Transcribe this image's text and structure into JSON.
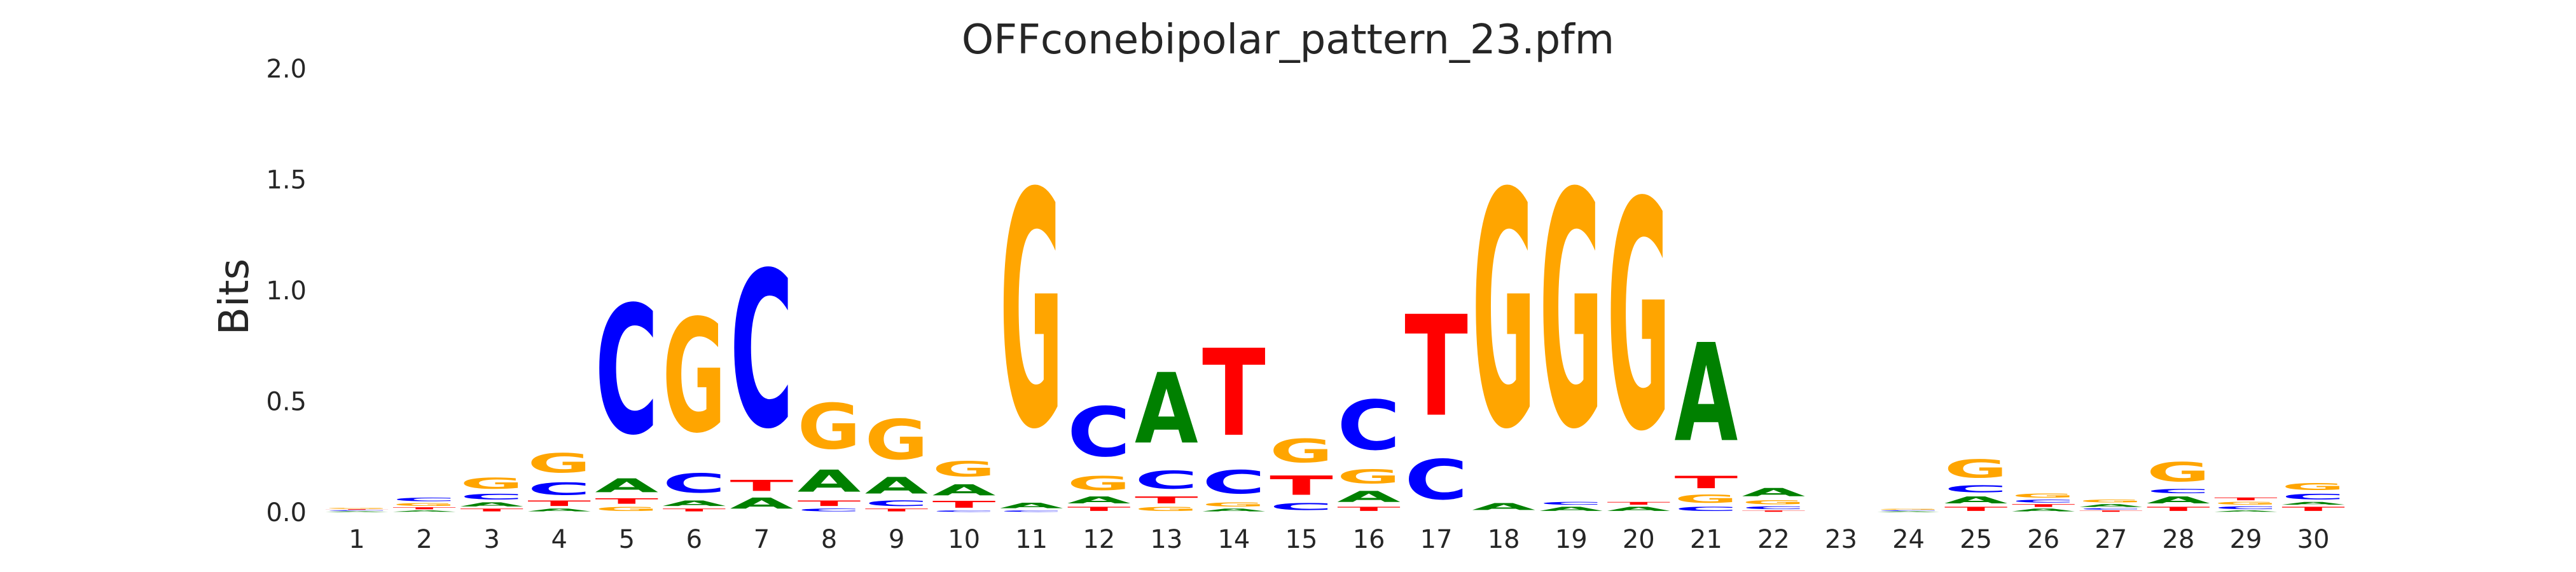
{
  "chart_data": {
    "type": "sequence-logo",
    "title": "OFFconebipolar_pattern_23.pfm",
    "ylabel": "Bits",
    "xlabel": "",
    "ylim": [
      0,
      2.0
    ],
    "y_ticks": [
      "0.0",
      "0.5",
      "1.0",
      "1.5",
      "2.0"
    ],
    "grid": false,
    "base_colors": {
      "A": "#008000",
      "C": "#0000ff",
      "G": "#ffa500",
      "T": "#ff0000"
    },
    "positions": [
      {
        "label": "1",
        "stack": [
          [
            "A",
            0.005
          ],
          [
            "C",
            0.005
          ],
          [
            "T",
            0.005
          ],
          [
            "G",
            0.005
          ]
        ]
      },
      {
        "label": "2",
        "stack": [
          [
            "A",
            0.01
          ],
          [
            "T",
            0.015
          ],
          [
            "G",
            0.02
          ],
          [
            "C",
            0.025
          ]
        ]
      },
      {
        "label": "3",
        "stack": [
          [
            "T",
            0.02
          ],
          [
            "A",
            0.03
          ],
          [
            "C",
            0.04
          ],
          [
            "G",
            0.08
          ]
        ]
      },
      {
        "label": "4",
        "stack": [
          [
            "A",
            0.02
          ],
          [
            "T",
            0.04
          ],
          [
            "C",
            0.09
          ],
          [
            "G",
            0.14
          ]
        ]
      },
      {
        "label": "5",
        "stack": [
          [
            "G",
            0.03
          ],
          [
            "T",
            0.04
          ],
          [
            "A",
            0.1
          ],
          [
            "C",
            0.93
          ]
        ]
      },
      {
        "label": "6",
        "stack": [
          [
            "T",
            0.02
          ],
          [
            "A",
            0.04
          ],
          [
            "C",
            0.14
          ],
          [
            "G",
            0.82
          ]
        ]
      },
      {
        "label": "7",
        "stack": [
          [
            "A",
            0.08
          ],
          [
            "T",
            0.08
          ],
          [
            "C",
            1.13
          ]
        ]
      },
      {
        "label": "8",
        "stack": [
          [
            "C",
            0.02
          ],
          [
            "T",
            0.04
          ],
          [
            "A",
            0.16
          ],
          [
            "G",
            0.33
          ]
        ]
      },
      {
        "label": "9",
        "stack": [
          [
            "T",
            0.02
          ],
          [
            "C",
            0.04
          ],
          [
            "A",
            0.12
          ],
          [
            "G",
            0.29
          ]
        ]
      },
      {
        "label": "10",
        "stack": [
          [
            "C",
            0.01
          ],
          [
            "T",
            0.05
          ],
          [
            "A",
            0.08
          ],
          [
            "G",
            0.11
          ]
        ]
      },
      {
        "label": "11",
        "stack": [
          [
            "C",
            0.01
          ],
          [
            "A",
            0.04
          ],
          [
            "G",
            1.7
          ]
        ]
      },
      {
        "label": "12",
        "stack": [
          [
            "T",
            0.03
          ],
          [
            "A",
            0.05
          ],
          [
            "G",
            0.1
          ],
          [
            "C",
            0.36
          ]
        ]
      },
      {
        "label": "13",
        "stack": [
          [
            "G",
            0.03
          ],
          [
            "T",
            0.05
          ],
          [
            "C",
            0.13
          ],
          [
            "A",
            0.51
          ]
        ]
      },
      {
        "label": "14",
        "stack": [
          [
            "A",
            0.02
          ],
          [
            "G",
            0.03
          ],
          [
            "C",
            0.17
          ],
          [
            "T",
            0.63
          ]
        ]
      },
      {
        "label": "15",
        "stack": [
          [
            "C",
            0.05
          ],
          [
            "T",
            0.14
          ],
          [
            "G",
            0.17
          ]
        ]
      },
      {
        "label": "16",
        "stack": [
          [
            "T",
            0.03
          ],
          [
            "A",
            0.08
          ],
          [
            "G",
            0.1
          ],
          [
            "C",
            0.36
          ]
        ]
      },
      {
        "label": "17",
        "stack": [
          [
            "C",
            0.29
          ],
          [
            "T",
            0.73
          ]
        ]
      },
      {
        "label": "18",
        "stack": [
          [
            "A",
            0.05
          ],
          [
            "G",
            1.7
          ]
        ]
      },
      {
        "label": "19",
        "stack": [
          [
            "A",
            0.03
          ],
          [
            "C",
            0.02
          ],
          [
            "G",
            1.7
          ]
        ]
      },
      {
        "label": "20",
        "stack": [
          [
            "A",
            0.03
          ],
          [
            "T",
            0.02
          ],
          [
            "G",
            1.65
          ]
        ]
      },
      {
        "label": "21",
        "stack": [
          [
            "C",
            0.03
          ],
          [
            "G",
            0.06
          ],
          [
            "T",
            0.09
          ],
          [
            "A",
            0.71
          ]
        ]
      },
      {
        "label": "22",
        "stack": [
          [
            "T",
            0.01
          ],
          [
            "C",
            0.02
          ],
          [
            "G",
            0.03
          ],
          [
            "A",
            0.06
          ]
        ]
      },
      {
        "label": "23",
        "stack": []
      },
      {
        "label": "24",
        "stack": [
          [
            "A",
            0.005
          ],
          [
            "C",
            0.005
          ],
          [
            "G",
            0.005
          ]
        ]
      },
      {
        "label": "25",
        "stack": [
          [
            "T",
            0.03
          ],
          [
            "A",
            0.05
          ],
          [
            "C",
            0.05
          ],
          [
            "G",
            0.13
          ]
        ]
      },
      {
        "label": "26",
        "stack": [
          [
            "A",
            0.02
          ],
          [
            "T",
            0.02
          ],
          [
            "C",
            0.02
          ],
          [
            "G",
            0.03
          ]
        ]
      },
      {
        "label": "27",
        "stack": [
          [
            "T",
            0.01
          ],
          [
            "C",
            0.01
          ],
          [
            "A",
            0.02
          ],
          [
            "G",
            0.02
          ]
        ]
      },
      {
        "label": "28",
        "stack": [
          [
            "T",
            0.03
          ],
          [
            "A",
            0.05
          ],
          [
            "C",
            0.03
          ],
          [
            "G",
            0.14
          ]
        ]
      },
      {
        "label": "29",
        "stack": [
          [
            "A",
            0.01
          ],
          [
            "C",
            0.02
          ],
          [
            "G",
            0.02
          ],
          [
            "T",
            0.02
          ]
        ]
      },
      {
        "label": "30",
        "stack": [
          [
            "T",
            0.03
          ],
          [
            "A",
            0.02
          ],
          [
            "C",
            0.04
          ],
          [
            "G",
            0.05
          ]
        ]
      }
    ]
  }
}
